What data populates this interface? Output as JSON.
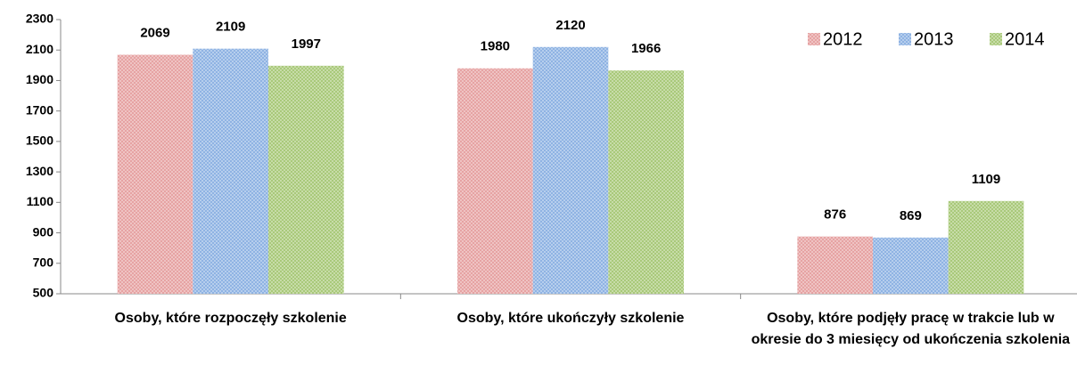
{
  "chart_data": {
    "type": "bar",
    "categories": [
      "Osoby, które rozpoczęły szkolenie",
      "Osoby, które ukończyły szkolenie",
      "Osoby, które podjęły pracę w trakcie lub w okresie do 3 miesięcy od ukończenia szkolenia"
    ],
    "series": [
      {
        "name": "2012",
        "color": "#e6a3a3",
        "values": [
          2069,
          1980,
          876
        ]
      },
      {
        "name": "2013",
        "color": "#8fb3e3",
        "values": [
          2109,
          2120,
          869
        ]
      },
      {
        "name": "2014",
        "color": "#a9c97a",
        "values": [
          1997,
          1966,
          1109
        ]
      }
    ],
    "ylim": [
      500,
      2300
    ],
    "yticks": [
      500,
      700,
      900,
      1100,
      1300,
      1500,
      1700,
      1900,
      2100,
      2300
    ],
    "legend": "upper right",
    "grid": false
  }
}
